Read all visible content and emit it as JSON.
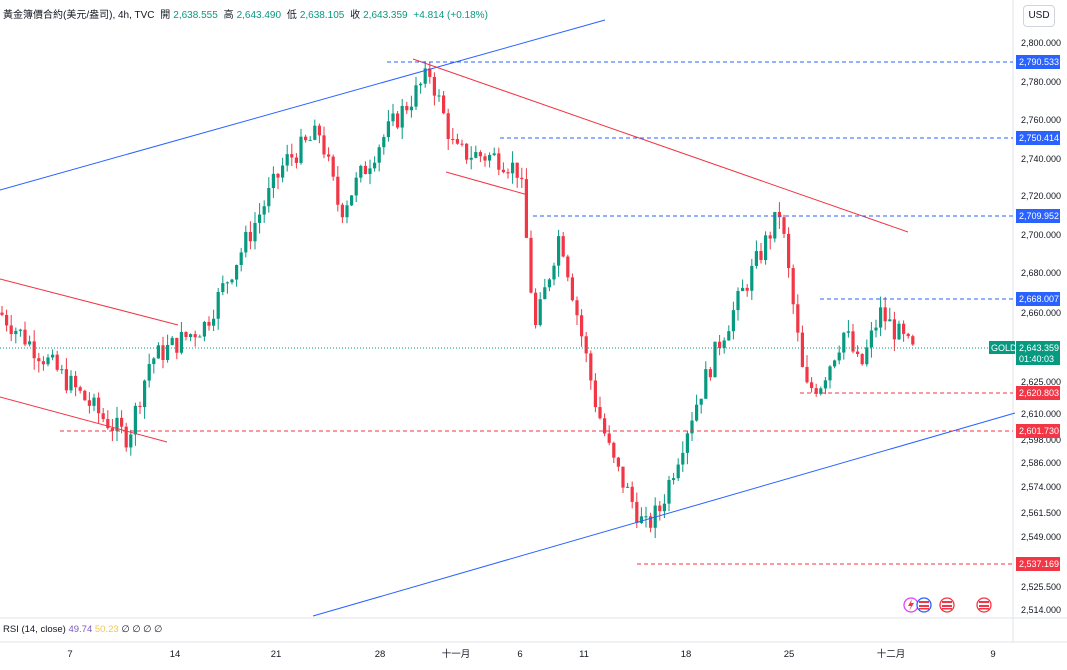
{
  "header": {
    "symbol": "黃金簿價合約(美元/盎司), 4h, TVC",
    "open_label": "開",
    "open": "2,638.555",
    "high_label": "高",
    "high": "2,643.490",
    "low_label": "低",
    "low": "2,638.105",
    "close_label": "收",
    "close": "2,643.359",
    "change": "+4.814 (+0.18%)"
  },
  "currency": "USD",
  "price_axis": {
    "ticks": [
      "2,800.000",
      "2,780.000",
      "2,760.000",
      "2,740.000",
      "2,720.000",
      "2,700.000",
      "2,680.000",
      "2,660.000",
      "2,625.000",
      "2,610.000",
      "2,598.000",
      "2,586.000",
      "2,574.000",
      "2,561.500",
      "2,549.000",
      "2,525.500",
      "2,514.000"
    ]
  },
  "time_axis": {
    "ticks": [
      "7",
      "14",
      "21",
      "28",
      "十一月",
      "6",
      "11",
      "18",
      "25",
      "十二月",
      "9"
    ]
  },
  "price_tags": [
    {
      "label": "2,790.533",
      "color": "#2962ff"
    },
    {
      "label": "2,750.414",
      "color": "#2962ff"
    },
    {
      "label": "2,709.952",
      "color": "#2962ff"
    },
    {
      "label": "2,668.007",
      "color": "#2962ff"
    },
    {
      "label": "2,620.803",
      "color": "#f23645"
    },
    {
      "label": "2,601.730",
      "color": "#f23645"
    },
    {
      "label": "2,537.169",
      "color": "#f23645"
    }
  ],
  "current": {
    "symbol": "GOLD",
    "price": "2,643.359",
    "countdown": "01:40:03",
    "color": "#089981"
  },
  "rsi": {
    "label": "RSI (14, close)",
    "value1": "49.74",
    "value2": "50.23",
    "rest": "∅ ∅ ∅ ∅"
  },
  "colors": {
    "up": "#089981",
    "down": "#f23645",
    "blue_line": "#2962ff",
    "red_line": "#f23645"
  },
  "chart_data": {
    "type": "candlestick",
    "title": "黃金簿價合約(美元/盎司), 4h, TVC",
    "ylim": [
      2510,
      2815
    ],
    "x_ticks": [
      "7",
      "14",
      "21",
      "28",
      "十一月",
      "6",
      "11",
      "18",
      "25",
      "十二月",
      "9"
    ],
    "anchors": [
      {
        "x": "start",
        "price": 2664
      },
      {
        "x": "8",
        "price": 2610
      },
      {
        "x": "9",
        "price": 2601
      },
      {
        "x": "11",
        "price": 2640
      },
      {
        "x": "15",
        "price": 2658
      },
      {
        "x": "21",
        "price": 2740
      },
      {
        "x": "24",
        "price": 2755
      },
      {
        "x": "26",
        "price": 2715
      },
      {
        "x": "29",
        "price": 2750
      },
      {
        "x": "31",
        "price": 2785
      },
      {
        "x": "十一月",
        "price": 2745
      },
      {
        "x": "4",
        "price": 2742
      },
      {
        "x": "6",
        "price": 2735
      },
      {
        "x": "7",
        "price": 2655
      },
      {
        "x": "8",
        "price": 2705
      },
      {
        "x": "11",
        "price": 2620
      },
      {
        "x": "12",
        "price": 2590
      },
      {
        "x": "14",
        "price": 2555
      },
      {
        "x": "15",
        "price": 2565
      },
      {
        "x": "18",
        "price": 2610
      },
      {
        "x": "20",
        "price": 2650
      },
      {
        "x": "25",
        "price": 2715
      },
      {
        "x": "26",
        "price": 2625
      },
      {
        "x": "27",
        "price": 2628
      },
      {
        "x": "28",
        "price": 2655
      },
      {
        "x": "29",
        "price": 2635
      },
      {
        "x": "十二月",
        "price": 2664
      },
      {
        "x": "2",
        "price": 2643
      }
    ]
  }
}
